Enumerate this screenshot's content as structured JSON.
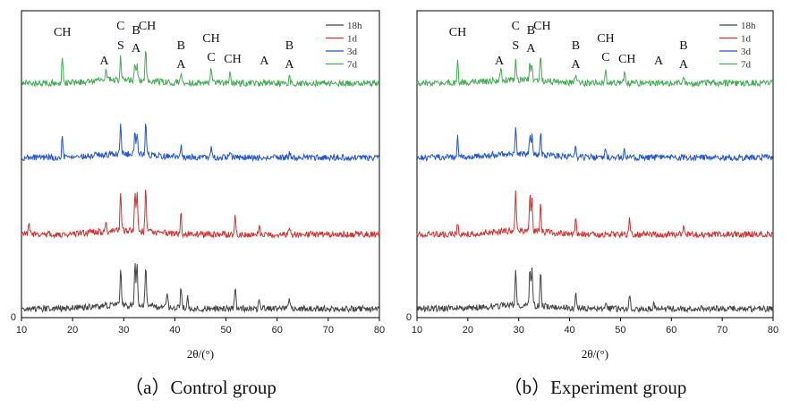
{
  "chart_data": [
    {
      "type": "line",
      "caption": "（a）Control group",
      "xlabel": "2θ/(°)",
      "ylabel": "",
      "xlim": [
        10,
        80
      ],
      "x_ticks": [
        "10",
        "20",
        "30",
        "40",
        "50",
        "60",
        "70",
        "80"
      ],
      "y_tick": "0",
      "legend_position": "top-right",
      "series": [
        {
          "name": "18h",
          "color": "#444444",
          "peaks": [
            [
              29.4,
              0.7
            ],
            [
              32.2,
              0.75
            ],
            [
              32.6,
              0.78
            ],
            [
              34.3,
              0.72
            ],
            [
              38.5,
              0.3
            ],
            [
              41.2,
              0.4
            ],
            [
              42.5,
              0.25
            ],
            [
              51.8,
              0.4
            ],
            [
              56.5,
              0.2
            ],
            [
              62.4,
              0.15
            ]
          ]
        },
        {
          "name": "1d",
          "color": "#cc3333",
          "peaks": [
            [
              11.5,
              0.2
            ],
            [
              26.5,
              0.15
            ],
            [
              29.4,
              0.75
            ],
            [
              32.2,
              0.7
            ],
            [
              32.6,
              0.68
            ],
            [
              34.3,
              0.8
            ],
            [
              41.2,
              0.35
            ],
            [
              51.8,
              0.35
            ],
            [
              56.5,
              0.15
            ],
            [
              62.4,
              0.15
            ]
          ]
        },
        {
          "name": "3d",
          "color": "#2255cc",
          "peaks": [
            [
              18.0,
              0.4
            ],
            [
              29.4,
              0.5
            ],
            [
              32.2,
              0.4
            ],
            [
              32.6,
              0.38
            ],
            [
              34.3,
              0.55
            ],
            [
              41.2,
              0.2
            ],
            [
              47.1,
              0.2
            ],
            [
              50.8,
              0.15
            ],
            [
              62.4,
              0.12
            ]
          ]
        },
        {
          "name": "7d",
          "color": "#44aa55",
          "peaks": [
            [
              18.0,
              0.5
            ],
            [
              26.5,
              0.2
            ],
            [
              29.4,
              0.4
            ],
            [
              32.2,
              0.3
            ],
            [
              32.6,
              0.25
            ],
            [
              34.3,
              0.6
            ],
            [
              41.2,
              0.15
            ],
            [
              47.1,
              0.3
            ],
            [
              50.8,
              0.18
            ],
            [
              62.4,
              0.12
            ]
          ]
        }
      ],
      "annotations": [
        {
          "lines": [
            "CH"
          ],
          "x": 18.0
        },
        {
          "lines": [
            "A"
          ],
          "x": 26.2
        },
        {
          "lines": [
            "C",
            "S"
          ],
          "x": 29.4
        },
        {
          "lines": [
            "B",
            "A"
          ],
          "x": 32.4
        },
        {
          "lines": [
            "CH"
          ],
          "x": 34.6
        },
        {
          "lines": [
            "B",
            "A"
          ],
          "x": 41.2
        },
        {
          "lines": [
            "CH",
            "C"
          ],
          "x": 47.1
        },
        {
          "lines": [
            "CH"
          ],
          "x": 51.3
        },
        {
          "lines": [
            "A"
          ],
          "x": 57.5
        },
        {
          "lines": [
            "B",
            "A"
          ],
          "x": 62.4
        }
      ]
    },
    {
      "type": "line",
      "caption": "（b）Experiment group",
      "xlabel": "2θ/(°)",
      "ylabel": "",
      "xlim": [
        10,
        80
      ],
      "x_ticks": [
        "10",
        "20",
        "30",
        "40",
        "50",
        "60",
        "70",
        "80"
      ],
      "y_tick": "0",
      "legend_position": "top-right",
      "series": [
        {
          "name": "18h",
          "color": "#444444",
          "peaks": [
            [
              29.4,
              0.6
            ],
            [
              32.2,
              0.7
            ],
            [
              32.6,
              0.65
            ],
            [
              34.3,
              0.6
            ],
            [
              41.2,
              0.3
            ],
            [
              47.1,
              0.15
            ],
            [
              51.8,
              0.25
            ],
            [
              56.5,
              0.12
            ]
          ]
        },
        {
          "name": "1d",
          "color": "#cc3333",
          "peaks": [
            [
              18.0,
              0.2
            ],
            [
              29.4,
              0.7
            ],
            [
              32.2,
              0.65
            ],
            [
              32.6,
              0.62
            ],
            [
              34.3,
              0.5
            ],
            [
              41.2,
              0.3
            ],
            [
              51.8,
              0.28
            ],
            [
              62.4,
              0.12
            ]
          ]
        },
        {
          "name": "3d",
          "color": "#2255cc",
          "peaks": [
            [
              18.0,
              0.35
            ],
            [
              29.4,
              0.45
            ],
            [
              32.2,
              0.35
            ],
            [
              32.6,
              0.32
            ],
            [
              34.3,
              0.4
            ],
            [
              41.2,
              0.2
            ],
            [
              47.1,
              0.18
            ],
            [
              50.8,
              0.15
            ]
          ]
        },
        {
          "name": "7d",
          "color": "#44aa55",
          "peaks": [
            [
              18.0,
              0.4
            ],
            [
              26.5,
              0.2
            ],
            [
              29.4,
              0.35
            ],
            [
              32.2,
              0.3
            ],
            [
              32.6,
              0.25
            ],
            [
              34.3,
              0.45
            ],
            [
              41.2,
              0.18
            ],
            [
              47.1,
              0.25
            ],
            [
              50.8,
              0.2
            ],
            [
              62.4,
              0.12
            ]
          ]
        }
      ],
      "annotations": [
        {
          "lines": [
            "CH"
          ],
          "x": 18.0
        },
        {
          "lines": [
            "A"
          ],
          "x": 26.2
        },
        {
          "lines": [
            "C",
            "S"
          ],
          "x": 29.4
        },
        {
          "lines": [
            "B",
            "A"
          ],
          "x": 32.4
        },
        {
          "lines": [
            "CH"
          ],
          "x": 34.6
        },
        {
          "lines": [
            "B",
            "A"
          ],
          "x": 41.2
        },
        {
          "lines": [
            "CH",
            "C"
          ],
          "x": 47.1
        },
        {
          "lines": [
            "CH"
          ],
          "x": 51.3
        },
        {
          "lines": [
            "A"
          ],
          "x": 57.5
        },
        {
          "lines": [
            "B",
            "A"
          ],
          "x": 62.4
        }
      ]
    }
  ]
}
